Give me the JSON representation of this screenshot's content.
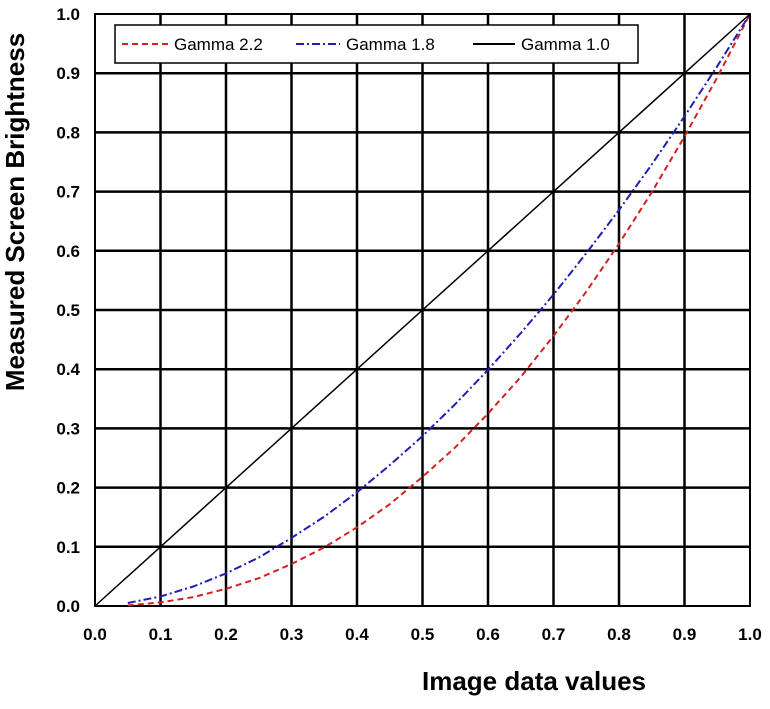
{
  "chart_data": {
    "type": "line",
    "title": "",
    "xlabel": "Image data values",
    "ylabel": "Measured Screen Brightness",
    "xlim": [
      0.0,
      1.0
    ],
    "ylim": [
      0.0,
      1.0
    ],
    "x_ticks": [
      "0.0",
      "0.1",
      "0.2",
      "0.3",
      "0.4",
      "0.5",
      "0.6",
      "0.7",
      "0.8",
      "0.9",
      "1.0"
    ],
    "y_ticks": [
      "0.0",
      "0.1",
      "0.2",
      "0.3",
      "0.4",
      "0.5",
      "0.6",
      "0.7",
      "0.8",
      "0.9",
      "1.0"
    ],
    "grid": true,
    "legend_position": "top",
    "series": [
      {
        "name": "Gamma 2.2",
        "color": "#d42020",
        "style": "dashed",
        "x": [
          0.05,
          0.1,
          0.15,
          0.2,
          0.25,
          0.3,
          0.35,
          0.4,
          0.45,
          0.5,
          0.55,
          0.6,
          0.65,
          0.7,
          0.75,
          0.8,
          0.85,
          0.9,
          0.95,
          1.0
        ],
        "y": [
          0.001,
          0.006,
          0.015,
          0.029,
          0.047,
          0.071,
          0.099,
          0.133,
          0.172,
          0.218,
          0.268,
          0.325,
          0.387,
          0.456,
          0.531,
          0.612,
          0.699,
          0.793,
          0.893,
          1.0
        ]
      },
      {
        "name": "Gamma 1.8",
        "color": "#2020b0",
        "style": "dash-dot",
        "x": [
          0.05,
          0.1,
          0.15,
          0.2,
          0.25,
          0.3,
          0.35,
          0.4,
          0.45,
          0.5,
          0.55,
          0.6,
          0.65,
          0.7,
          0.75,
          0.8,
          0.85,
          0.9,
          0.95,
          1.0
        ],
        "y": [
          0.005,
          0.016,
          0.033,
          0.055,
          0.082,
          0.115,
          0.151,
          0.192,
          0.238,
          0.287,
          0.341,
          0.399,
          0.461,
          0.526,
          0.596,
          0.669,
          0.746,
          0.827,
          0.912,
          1.0
        ]
      },
      {
        "name": "Gamma 1.0",
        "color": "#000000",
        "style": "solid",
        "x": [
          0.0,
          1.0
        ],
        "y": [
          0.0,
          1.0
        ]
      }
    ]
  }
}
